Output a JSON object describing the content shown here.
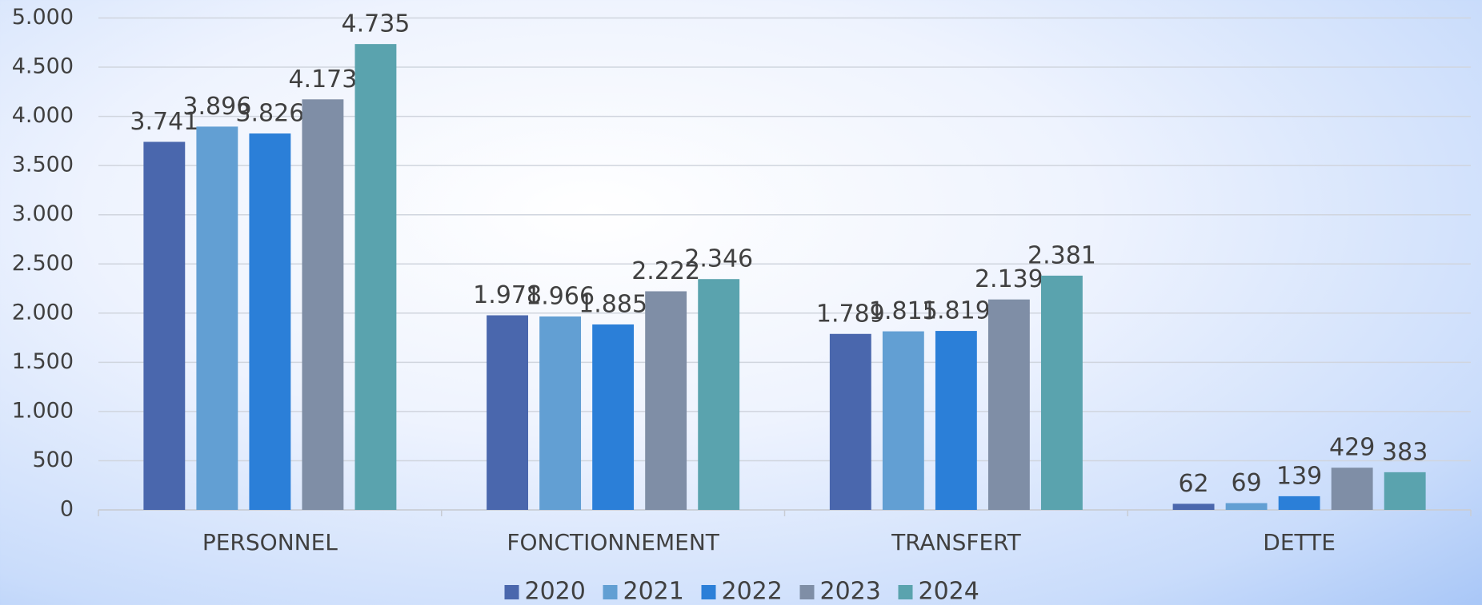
{
  "chart_data": {
    "type": "bar",
    "categories": [
      "PERSONNEL",
      "FONCTIONNEMENT",
      "TRANSFERT",
      "DETTE"
    ],
    "series": [
      {
        "name": "2020",
        "color": "#4a67ad",
        "values": [
          3741,
          1978,
          1789,
          62
        ],
        "value_labels": [
          "3.741",
          "1.978",
          "1.789",
          "62"
        ]
      },
      {
        "name": "2021",
        "color": "#629fd3",
        "values": [
          3896,
          1966,
          1815,
          69
        ],
        "value_labels": [
          "3.896",
          "1.966",
          "1.815",
          "69"
        ]
      },
      {
        "name": "2022",
        "color": "#2b7fd8",
        "values": [
          3826,
          1885,
          1819,
          139
        ],
        "value_labels": [
          "3.826",
          "1.885",
          "1.819",
          "139"
        ]
      },
      {
        "name": "2023",
        "color": "#7f8ea6",
        "values": [
          4173,
          2222,
          2139,
          429
        ],
        "value_labels": [
          "4.173",
          "2.222",
          "2.139",
          "429"
        ]
      },
      {
        "name": "2024",
        "color": "#5aa3ae",
        "values": [
          4735,
          2346,
          2381,
          383
        ],
        "value_labels": [
          "4.735",
          "2.346",
          "2.381",
          "383"
        ]
      }
    ],
    "ylim": [
      0,
      5000
    ],
    "yticks": [
      0,
      500,
      {
        "value": 1000,
        "label": "1.000"
      },
      {
        "value": 1500,
        "label": "1.500"
      },
      {
        "value": 2000,
        "label": "2.000"
      },
      {
        "value": 2500,
        "label": "2.500"
      },
      {
        "value": 3000,
        "label": "3.000"
      },
      {
        "value": 3500,
        "label": "3.500"
      },
      {
        "value": 4000,
        "label": "4.000"
      },
      {
        "value": 4500,
        "label": "4.500"
      },
      {
        "value": 5000,
        "label": "5.000"
      }
    ],
    "grid": true,
    "legend": "bottom"
  }
}
